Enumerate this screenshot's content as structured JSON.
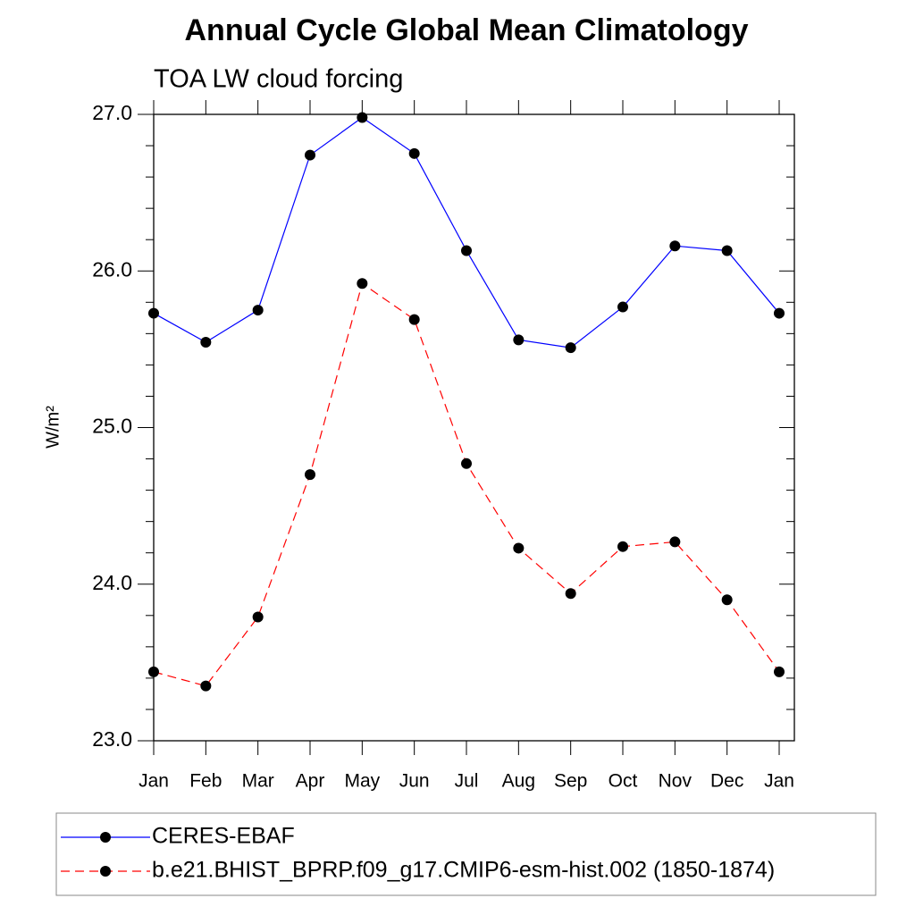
{
  "chart_data": {
    "type": "line",
    "title": "Annual Cycle Global Mean Climatology",
    "subtitle": "TOA LW cloud forcing",
    "y_label": "W/m²",
    "categories": [
      "Jan",
      "Feb",
      "Mar",
      "Apr",
      "May",
      "Jun",
      "Jul",
      "Aug",
      "Sep",
      "Oct",
      "Nov",
      "Dec",
      "Jan"
    ],
    "series": [
      {
        "name": "CERES-EBAF",
        "color": "#0000ff",
        "dash": "solid",
        "values": [
          25.73,
          25.545,
          25.75,
          26.74,
          26.98,
          26.75,
          26.13,
          25.56,
          25.51,
          25.77,
          26.16,
          26.13,
          25.73
        ]
      },
      {
        "name": "b.e21.BHIST_BPRP.f09_g17.CMIP6-esm-hist.002 (1850-1874)",
        "color": "#ff0000",
        "dash": "dashed",
        "values": [
          23.44,
          23.35,
          23.79,
          24.7,
          25.92,
          25.69,
          24.77,
          24.23,
          23.94,
          24.24,
          24.27,
          23.9,
          23.44
        ]
      }
    ],
    "ylim": [
      23.0,
      27.0
    ],
    "yticks": [
      {
        "value": 23,
        "label": "23.0"
      },
      {
        "value": 24,
        "label": "24.0"
      },
      {
        "value": 25,
        "label": "25.0"
      },
      {
        "value": 26,
        "label": "26.0"
      },
      {
        "value": 27,
        "label": "27.0"
      }
    ],
    "yminorticks": [
      23.2,
      23.4,
      23.6,
      23.8,
      24.2,
      24.4,
      24.6,
      24.8,
      25.2,
      25.4,
      25.6,
      25.8,
      26.2,
      26.4,
      26.6,
      26.8
    ],
    "legend": "bottom"
  }
}
